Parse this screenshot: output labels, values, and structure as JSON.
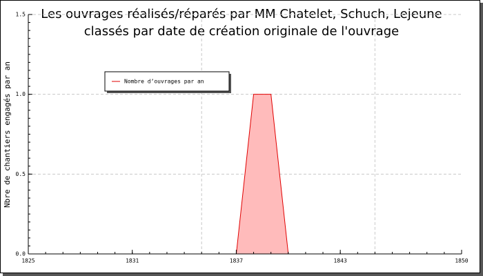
{
  "chart_data": {
    "type": "area",
    "title": [
      "Les ouvrages réalisés/réparés par MM Chatelet, Schuch, Lejeune",
      "classés par date de création originale de l'ouvrage"
    ],
    "y_label": "Nbre de chantiers engagés par an",
    "x": [
      1837,
      1838,
      1839,
      1840
    ],
    "series": [
      {
        "name": "Nombre d’ouvrages par an",
        "color": "#e00000",
        "fill": "#ffbbbb",
        "values": [
          0,
          1,
          1,
          0
        ]
      }
    ],
    "xlim": [
      1825,
      1850
    ],
    "xticks": [
      1825,
      1831,
      1837,
      1843,
      1850
    ],
    "xgrid": [
      1835,
      1845
    ],
    "ylim": [
      0,
      1.5
    ],
    "yticks": [
      {
        "value": 0,
        "label": "0.0"
      },
      {
        "value": 0.5,
        "label": "0.5"
      },
      {
        "value": 1,
        "label": "1.0"
      },
      {
        "value": 1.5,
        "label": "1.5"
      }
    ],
    "grid": true,
    "legend": "top-left"
  }
}
